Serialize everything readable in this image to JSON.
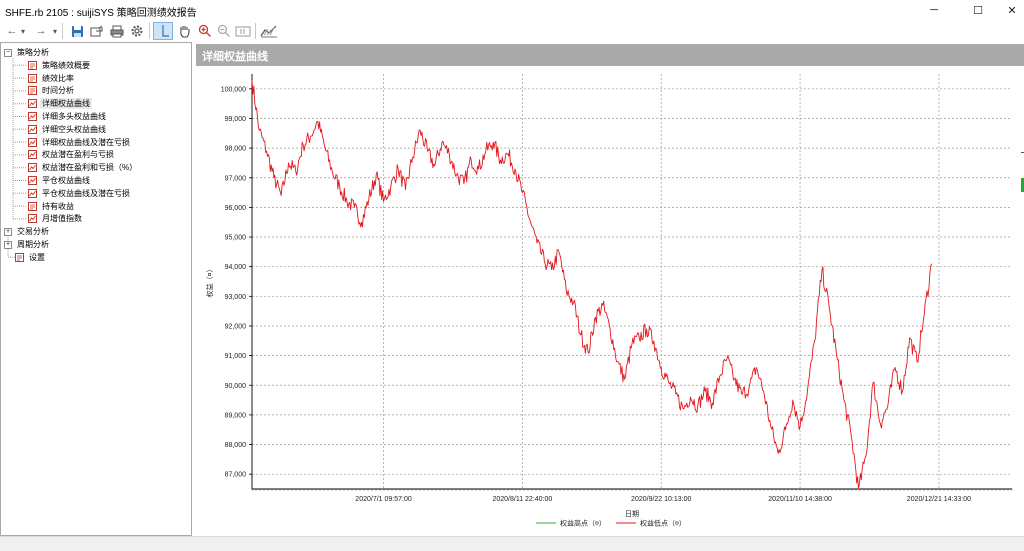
{
  "window": {
    "title": "SHFE.rb 2105 : suijiSYS 策略回测绩效报告",
    "minimize_glyph": "─",
    "maximize_glyph": "☐",
    "close_glyph": "✕"
  },
  "toolbar": {
    "back_glyph": "←",
    "forward_glyph": "→",
    "dropdown_glyph": "▾",
    "buttons": [
      "save-icon",
      "export-icon",
      "print-icon",
      "settings-icon",
      "crosshair-icon",
      "pan-hand-icon",
      "zoom-in-icon",
      "zoom-out-icon",
      "zoom-reset-icon",
      "chart-style-icon"
    ]
  },
  "sidebar": {
    "nodes": [
      {
        "label": "策略分析",
        "level": 0,
        "expander": "−",
        "icon": ""
      },
      {
        "label": "策略绩效概要",
        "level": 1,
        "icon": "report-icon"
      },
      {
        "label": "绩效比率",
        "level": 1,
        "icon": "report-icon"
      },
      {
        "label": "时间分析",
        "level": 1,
        "icon": "report-icon"
      },
      {
        "label": "详细权益曲线",
        "level": 1,
        "icon": "chart-icon",
        "selected": true
      },
      {
        "label": "详细多头权益曲线",
        "level": 1,
        "icon": "chart-icon"
      },
      {
        "label": "详细空头权益曲线",
        "level": 1,
        "icon": "chart-icon"
      },
      {
        "label": "详细权益曲线及潜在亏损",
        "level": 1,
        "icon": "chart-icon"
      },
      {
        "label": "权益潜在盈利与亏损",
        "level": 1,
        "icon": "chart-icon"
      },
      {
        "label": "权益潜在盈利和亏损（%）",
        "level": 1,
        "icon": "chart-icon"
      },
      {
        "label": "平仓权益曲线",
        "level": 1,
        "icon": "chart-icon"
      },
      {
        "label": "平仓权益曲线及潜在亏损",
        "level": 1,
        "icon": "chart-icon"
      },
      {
        "label": "持有收益",
        "level": 1,
        "icon": "report-icon"
      },
      {
        "label": "月增值指数",
        "level": 1,
        "icon": "chart-icon"
      },
      {
        "label": "交易分析",
        "level": 0,
        "expander": "+",
        "icon": ""
      },
      {
        "label": "周期分析",
        "level": 0,
        "expander": "+",
        "icon": ""
      },
      {
        "label": "设置",
        "level": 0,
        "expander": "",
        "icon": "report-icon"
      }
    ]
  },
  "panel": {
    "title": "详细权益曲线"
  },
  "colors": {
    "high_series": "#33aa33",
    "low_series": "#e4161b",
    "grid": "#9a9a9a",
    "header_bg": "#a9a9a9"
  },
  "chart_data": {
    "type": "line",
    "title": "",
    "xlabel": "日期",
    "ylabel": "权益（¤）",
    "ylim": [
      86500,
      100500
    ],
    "yticks": [
      87000,
      88000,
      89000,
      90000,
      91000,
      92000,
      93000,
      94000,
      95000,
      96000,
      97000,
      98000,
      99000,
      100000
    ],
    "ytick_labels": [
      "87,000",
      "88,000",
      "89,000",
      "90,000",
      "91,000",
      "92,000",
      "93,000",
      "94,000",
      "95,000",
      "96,000",
      "97,000",
      "98,000",
      "99,000",
      "100,000"
    ],
    "xlim": [
      0,
      104
    ],
    "xticks": [
      18,
      37,
      56,
      75,
      94
    ],
    "xtick_labels": [
      "2020/7/1 09:57:00",
      "2020/8/11 22:40:00",
      "2020/9/22 10:13:00",
      "2020/11/10 14:38:00",
      "2020/12/21 14:33:00"
    ],
    "grid": true,
    "legend_position": "bottom-center",
    "series": [
      {
        "name": "权益高点（¤）",
        "values": []
      },
      {
        "name": "权益低点（¤）",
        "values": [
          100300,
          98600,
          97900,
          97000,
          96400,
          97500,
          97200,
          98100,
          98400,
          98900,
          98000,
          97200,
          96700,
          96200,
          96000,
          95500,
          96300,
          97100,
          96200,
          96700,
          97300,
          96600,
          97700,
          98600,
          97900,
          97400,
          98200,
          97800,
          97100,
          96800,
          97600,
          97300,
          97900,
          98200,
          97600,
          97800,
          97300,
          96500,
          95600,
          94800,
          94200,
          93900,
          94500,
          93200,
          92800,
          91700,
          91100,
          92300,
          92700,
          91900,
          90800,
          90200,
          91400,
          91600,
          91900,
          91500,
          90600,
          90100,
          89700,
          89200,
          89600,
          89300,
          89800,
          89400,
          90300,
          90900,
          90200,
          89700,
          89900,
          90600,
          89800,
          88600,
          87700,
          88500,
          89500,
          88600,
          89800,
          91500,
          93900,
          92600,
          91000,
          89500,
          88300,
          86500,
          87600,
          90100,
          88700,
          89300,
          90600,
          89800,
          91600,
          90800,
          92400,
          94100
        ]
      }
    ]
  }
}
